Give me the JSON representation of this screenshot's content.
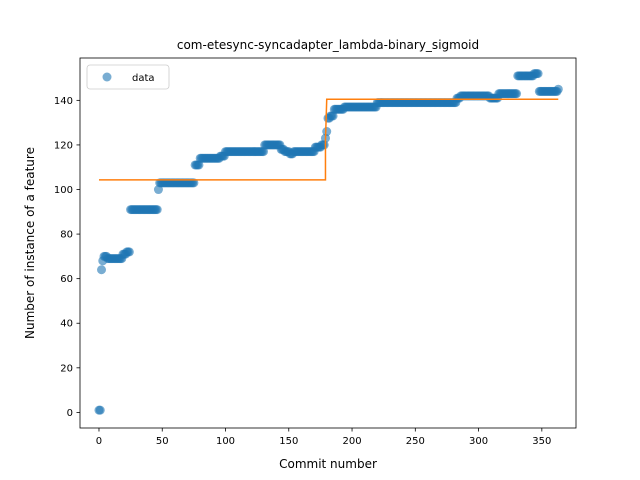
{
  "chart_data": {
    "type": "scatter",
    "title": "com-etesync-syncadapter_lambda-binary_sigmoid",
    "xlabel": "Commit number",
    "ylabel": "Number of instance of a feature",
    "xlim": [
      -15,
      377
    ],
    "ylim": [
      -7,
      159
    ],
    "xticks": [
      0,
      50,
      100,
      150,
      200,
      250,
      300,
      350
    ],
    "yticks": [
      0,
      20,
      40,
      60,
      80,
      100,
      120,
      140
    ],
    "legend": {
      "entries": [
        "data"
      ],
      "position": "upper-left"
    },
    "colors": {
      "data": "#1f77b4",
      "fit": "#ff7f0e"
    },
    "grid": false,
    "series": [
      {
        "name": "data",
        "kind": "scatter",
        "segments": [
          {
            "x0": 0,
            "x1": 1,
            "y": 1
          },
          {
            "x0": 2,
            "x1": 2,
            "y": 64
          },
          {
            "x0": 3,
            "x1": 3,
            "y": 68
          },
          {
            "x0": 4,
            "x1": 6,
            "y": 70
          },
          {
            "x0": 7,
            "x1": 18,
            "y": 69
          },
          {
            "x0": 19,
            "x1": 21,
            "y": 71
          },
          {
            "x0": 22,
            "x1": 24,
            "y": 72
          },
          {
            "x0": 25,
            "x1": 46,
            "y": 91
          },
          {
            "x0": 47,
            "x1": 47,
            "y": 100
          },
          {
            "x0": 48,
            "x1": 49,
            "y": 103
          },
          {
            "x0": 50,
            "x1": 75,
            "y": 103
          },
          {
            "x0": 76,
            "x1": 79,
            "y": 111
          },
          {
            "x0": 80,
            "x1": 95,
            "y": 114
          },
          {
            "x0": 96,
            "x1": 99,
            "y": 115
          },
          {
            "x0": 100,
            "x1": 130,
            "y": 117
          },
          {
            "x0": 131,
            "x1": 143,
            "y": 120
          },
          {
            "x0": 144,
            "x1": 146,
            "y": 118
          },
          {
            "x0": 147,
            "x1": 150,
            "y": 117
          },
          {
            "x0": 151,
            "x1": 153,
            "y": 116
          },
          {
            "x0": 154,
            "x1": 170,
            "y": 117
          },
          {
            "x0": 171,
            "x1": 175,
            "y": 119
          },
          {
            "x0": 176,
            "x1": 178,
            "y": 120
          },
          {
            "x0": 179,
            "x1": 179,
            "y": 123
          },
          {
            "x0": 180,
            "x1": 180,
            "y": 126
          },
          {
            "x0": 181,
            "x1": 182,
            "y": 132
          },
          {
            "x0": 183,
            "x1": 185,
            "y": 133
          },
          {
            "x0": 186,
            "x1": 193,
            "y": 136
          },
          {
            "x0": 194,
            "x1": 219,
            "y": 137
          },
          {
            "x0": 220,
            "x1": 282,
            "y": 139
          },
          {
            "x0": 283,
            "x1": 285,
            "y": 141
          },
          {
            "x0": 286,
            "x1": 308,
            "y": 142
          },
          {
            "x0": 309,
            "x1": 315,
            "y": 141
          },
          {
            "x0": 316,
            "x1": 330,
            "y": 143
          },
          {
            "x0": 331,
            "x1": 343,
            "y": 151
          },
          {
            "x0": 344,
            "x1": 347,
            "y": 152
          },
          {
            "x0": 348,
            "x1": 362,
            "y": 144
          },
          {
            "x0": 363,
            "x1": 363,
            "y": 145
          }
        ]
      },
      {
        "name": "",
        "kind": "line",
        "x": [
          0,
          179,
          179,
          180,
          363
        ],
        "y": [
          104.3,
          104.3,
          122,
          140.5,
          140.5
        ]
      }
    ]
  }
}
